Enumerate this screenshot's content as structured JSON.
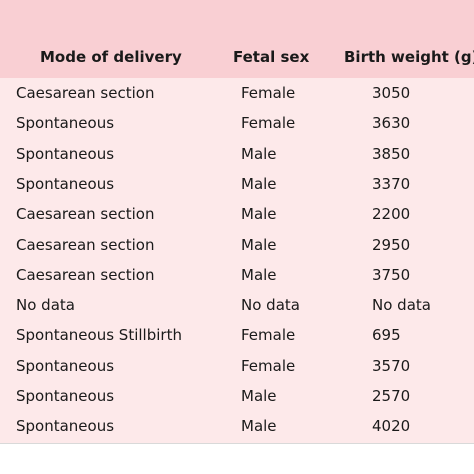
{
  "table": {
    "headers": [
      "Mode of delivery",
      "Fetal sex",
      "Birth weight (g)"
    ],
    "rows": [
      [
        "Caesarean section",
        "Female",
        "3050"
      ],
      [
        "Spontaneous",
        "Female",
        "3630"
      ],
      [
        "Spontaneous",
        "Male",
        "3850"
      ],
      [
        "Spontaneous",
        "Male",
        "3370"
      ],
      [
        "Caesarean section",
        "Male",
        "2200"
      ],
      [
        "Caesarean section",
        "Male",
        "2950"
      ],
      [
        "Caesarean section",
        "Male",
        "3750"
      ],
      [
        "No data",
        "No data",
        "No data"
      ],
      [
        "Spontaneous Stillbirth",
        "Female",
        "695"
      ],
      [
        "Spontaneous",
        "Female",
        "3570"
      ],
      [
        "Spontaneous",
        "Male",
        "2570"
      ],
      [
        "Spontaneous",
        "Male",
        "4020"
      ]
    ]
  }
}
